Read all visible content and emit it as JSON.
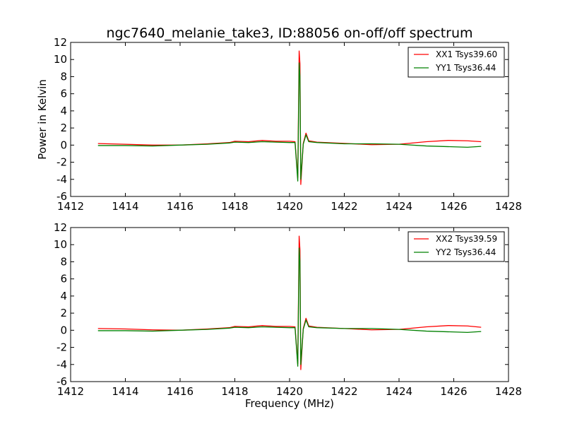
{
  "chart_data": [
    {
      "type": "line",
      "title": "ngc7640_melanie_take3, ID:88056 on-off/off spectrum",
      "xlabel": "",
      "ylabel": "Power in Kelvin",
      "xlim": [
        1412,
        1428
      ],
      "ylim": [
        -6,
        12
      ],
      "xticks": [
        "1412",
        "1414",
        "1416",
        "1418",
        "1420",
        "1422",
        "1424",
        "1426",
        "1428"
      ],
      "yticks": [
        "-6",
        "-4",
        "-2",
        "0",
        "2",
        "4",
        "6",
        "8",
        "10",
        "12"
      ],
      "grid": false,
      "legend_position": "top-right",
      "series": [
        {
          "name": "XX1 Tsys39.60",
          "color": "#ff0000",
          "points": [
            [
              1413.0,
              0.18
            ],
            [
              1414.0,
              0.1
            ],
            [
              1415.0,
              0.0
            ],
            [
              1416.0,
              0.0
            ],
            [
              1417.0,
              0.15
            ],
            [
              1417.8,
              0.3
            ],
            [
              1418.0,
              0.45
            ],
            [
              1418.5,
              0.4
            ],
            [
              1419.0,
              0.55
            ],
            [
              1419.5,
              0.45
            ],
            [
              1420.0,
              0.45
            ],
            [
              1420.2,
              0.4
            ],
            [
              1420.3,
              -3.8
            ],
            [
              1420.35,
              11.0
            ],
            [
              1420.38,
              9.5
            ],
            [
              1420.41,
              -4.6
            ],
            [
              1420.5,
              0.2
            ],
            [
              1420.6,
              1.4
            ],
            [
              1420.7,
              0.5
            ],
            [
              1421.0,
              0.35
            ],
            [
              1422.0,
              0.2
            ],
            [
              1423.0,
              0.05
            ],
            [
              1424.0,
              0.1
            ],
            [
              1425.0,
              0.4
            ],
            [
              1425.8,
              0.55
            ],
            [
              1426.5,
              0.5
            ],
            [
              1427.0,
              0.4
            ]
          ]
        },
        {
          "name": "YY1 Tsys36.44",
          "color": "#008000",
          "points": [
            [
              1413.0,
              -0.05
            ],
            [
              1414.0,
              -0.05
            ],
            [
              1415.0,
              -0.1
            ],
            [
              1416.0,
              0.0
            ],
            [
              1417.0,
              0.1
            ],
            [
              1417.8,
              0.25
            ],
            [
              1418.0,
              0.35
            ],
            [
              1418.5,
              0.3
            ],
            [
              1419.0,
              0.4
            ],
            [
              1419.5,
              0.35
            ],
            [
              1420.0,
              0.3
            ],
            [
              1420.2,
              0.3
            ],
            [
              1420.3,
              -4.2
            ],
            [
              1420.35,
              9.6
            ],
            [
              1420.38,
              8.0
            ],
            [
              1420.41,
              -4.0
            ],
            [
              1420.5,
              0.1
            ],
            [
              1420.6,
              1.2
            ],
            [
              1420.7,
              0.4
            ],
            [
              1421.0,
              0.3
            ],
            [
              1422.0,
              0.15
            ],
            [
              1423.0,
              0.15
            ],
            [
              1424.0,
              0.1
            ],
            [
              1425.0,
              -0.1
            ],
            [
              1426.0,
              -0.2
            ],
            [
              1426.5,
              -0.25
            ],
            [
              1427.0,
              -0.15
            ]
          ]
        }
      ]
    },
    {
      "type": "line",
      "title": "",
      "xlabel": "Frequency (MHz)",
      "ylabel": "",
      "xlim": [
        1412,
        1428
      ],
      "ylim": [
        -6,
        12
      ],
      "xticks": [
        "1412",
        "1414",
        "1416",
        "1418",
        "1420",
        "1422",
        "1424",
        "1426",
        "1428"
      ],
      "yticks": [
        "-6",
        "-4",
        "-2",
        "0",
        "2",
        "4",
        "6",
        "8",
        "10",
        "12"
      ],
      "grid": false,
      "legend_position": "top-right",
      "series": [
        {
          "name": "XX2 Tsys39.59",
          "color": "#ff0000",
          "points": [
            [
              1413.0,
              0.2
            ],
            [
              1414.0,
              0.15
            ],
            [
              1415.0,
              0.05
            ],
            [
              1416.0,
              0.0
            ],
            [
              1417.0,
              0.15
            ],
            [
              1417.8,
              0.3
            ],
            [
              1418.0,
              0.45
            ],
            [
              1418.5,
              0.4
            ],
            [
              1419.0,
              0.55
            ],
            [
              1419.5,
              0.45
            ],
            [
              1420.0,
              0.45
            ],
            [
              1420.2,
              0.4
            ],
            [
              1420.3,
              -3.9
            ],
            [
              1420.35,
              11.0
            ],
            [
              1420.38,
              9.4
            ],
            [
              1420.41,
              -4.6
            ],
            [
              1420.5,
              0.2
            ],
            [
              1420.6,
              1.4
            ],
            [
              1420.7,
              0.5
            ],
            [
              1421.0,
              0.35
            ],
            [
              1422.0,
              0.2
            ],
            [
              1423.0,
              0.05
            ],
            [
              1424.0,
              0.1
            ],
            [
              1425.0,
              0.4
            ],
            [
              1425.8,
              0.55
            ],
            [
              1426.5,
              0.5
            ],
            [
              1427.0,
              0.35
            ]
          ]
        },
        {
          "name": "YY2 Tsys36.44",
          "color": "#008000",
          "points": [
            [
              1413.0,
              -0.05
            ],
            [
              1414.0,
              -0.05
            ],
            [
              1415.0,
              -0.1
            ],
            [
              1416.0,
              0.0
            ],
            [
              1417.0,
              0.1
            ],
            [
              1417.8,
              0.25
            ],
            [
              1418.0,
              0.35
            ],
            [
              1418.5,
              0.3
            ],
            [
              1419.0,
              0.4
            ],
            [
              1419.5,
              0.35
            ],
            [
              1420.0,
              0.3
            ],
            [
              1420.2,
              0.3
            ],
            [
              1420.3,
              -4.2
            ],
            [
              1420.35,
              9.6
            ],
            [
              1420.38,
              8.0
            ],
            [
              1420.41,
              -4.0
            ],
            [
              1420.5,
              0.1
            ],
            [
              1420.6,
              1.2
            ],
            [
              1420.7,
              0.4
            ],
            [
              1421.0,
              0.3
            ],
            [
              1422.0,
              0.2
            ],
            [
              1423.0,
              0.2
            ],
            [
              1424.0,
              0.1
            ],
            [
              1425.0,
              -0.1
            ],
            [
              1426.0,
              -0.2
            ],
            [
              1426.5,
              -0.25
            ],
            [
              1427.0,
              -0.15
            ]
          ]
        }
      ]
    }
  ]
}
